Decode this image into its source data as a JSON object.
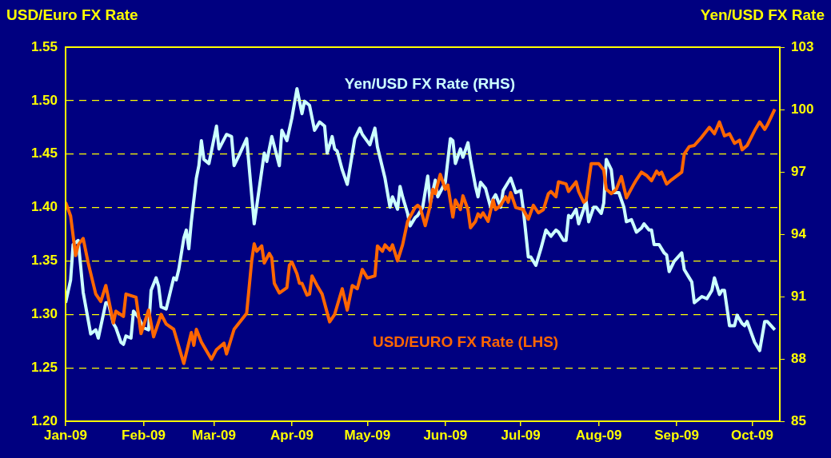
{
  "chart_data": {
    "type": "line",
    "ylabel": "USD/Euro FX Rate",
    "y2label": "Yen/USD FX Rate",
    "xlim": [
      "2009-01-01",
      "2009-10-12"
    ],
    "xticks": [
      {
        "value": "2009-01-01",
        "label": "Jan-09"
      },
      {
        "value": "2009-02-01",
        "label": "Feb-09"
      },
      {
        "value": "2009-03-01",
        "label": "Mar-09"
      },
      {
        "value": "2009-04-01",
        "label": "Apr-09"
      },
      {
        "value": "2009-05-01",
        "label": "May-09"
      },
      {
        "value": "2009-06-01",
        "label": "Jun-09"
      },
      {
        "value": "2009-07-01",
        "label": "Jul-09"
      },
      {
        "value": "2009-08-01",
        "label": "Aug-09"
      },
      {
        "value": "2009-09-01",
        "label": "Sep-09"
      },
      {
        "value": "2009-10-01",
        "label": "Oct-09"
      }
    ],
    "ylim": [
      1.2,
      1.55
    ],
    "yticks": [
      {
        "value": 1.2,
        "label": "1.20"
      },
      1.25,
      {
        "value": 1.3,
        "label": "1.30"
      },
      1.35,
      {
        "value": 1.4,
        "label": "1.40"
      },
      1.45,
      {
        "value": 1.5,
        "label": "1.50"
      },
      1.55
    ],
    "y2lim": [
      85,
      103
    ],
    "y2ticks": [
      85,
      88,
      91,
      94,
      97,
      100,
      103
    ],
    "grid": "y",
    "legend": false,
    "line_style": "solid",
    "series": [
      {
        "name": "USD/EURO FX Rate (LHS)",
        "color": "#ff6600",
        "x": [
          "2009-01-01",
          "2009-01-03",
          "2009-01-05",
          "2009-01-06",
          "2009-01-08",
          "2009-01-10",
          "2009-01-13",
          "2009-01-15",
          "2009-01-17",
          "2009-01-20",
          "2009-01-21",
          "2009-01-24",
          "2009-01-25",
          "2009-01-29",
          "2009-01-31",
          "2009-02-03",
          "2009-02-05",
          "2009-02-08",
          "2009-02-10",
          "2009-02-13",
          "2009-02-17",
          "2009-02-20",
          "2009-02-21",
          "2009-02-22",
          "2009-02-24",
          "2009-02-28",
          "2009-03-02",
          "2009-03-05",
          "2009-03-06",
          "2009-03-09",
          "2009-03-11",
          "2009-03-14",
          "2009-03-16",
          "2009-03-17",
          "2009-03-18",
          "2009-03-20",
          "2009-03-21",
          "2009-03-23",
          "2009-03-24",
          "2009-03-25",
          "2009-03-27",
          "2009-03-30",
          "2009-03-31",
          "2009-04-01",
          "2009-04-03",
          "2009-04-04",
          "2009-04-05",
          "2009-04-07",
          "2009-04-08",
          "2009-04-09",
          "2009-04-11",
          "2009-04-13",
          "2009-04-16",
          "2009-04-18",
          "2009-04-21",
          "2009-04-23",
          "2009-04-25",
          "2009-04-27",
          "2009-04-29",
          "2009-05-01",
          "2009-05-04",
          "2009-05-05",
          "2009-05-07",
          "2009-05-08",
          "2009-05-10",
          "2009-05-11",
          "2009-05-13",
          "2009-05-15",
          "2009-05-17",
          "2009-05-20",
          "2009-05-21",
          "2009-05-22",
          "2009-05-24",
          "2009-05-26",
          "2009-05-27",
          "2009-05-28",
          "2009-05-30",
          "2009-06-01",
          "2009-06-02",
          "2009-06-04",
          "2009-06-05",
          "2009-06-07",
          "2009-06-08",
          "2009-06-10",
          "2009-06-11",
          "2009-06-13",
          "2009-06-14",
          "2009-06-15",
          "2009-06-16",
          "2009-06-18",
          "2009-06-20",
          "2009-06-21",
          "2009-06-23",
          "2009-06-25",
          "2009-06-26",
          "2009-06-27",
          "2009-06-29",
          "2009-07-02",
          "2009-07-04",
          "2009-07-06",
          "2009-07-08",
          "2009-07-10",
          "2009-07-12",
          "2009-07-13",
          "2009-07-15",
          "2009-07-16",
          "2009-07-19",
          "2009-07-20",
          "2009-07-23",
          "2009-07-24",
          "2009-07-26",
          "2009-07-27",
          "2009-07-29",
          "2009-08-01",
          "2009-08-03",
          "2009-08-04",
          "2009-08-06",
          "2009-08-08",
          "2009-08-10",
          "2009-08-12",
          "2009-08-15",
          "2009-08-16",
          "2009-08-18",
          "2009-08-20",
          "2009-08-22",
          "2009-08-24",
          "2009-08-25",
          "2009-08-26",
          "2009-08-28",
          "2009-08-30",
          "2009-09-03",
          "2009-09-04",
          "2009-09-06",
          "2009-09-08",
          "2009-09-11",
          "2009-09-14",
          "2009-09-16",
          "2009-09-18",
          "2009-09-20",
          "2009-09-22",
          "2009-09-24",
          "2009-09-26",
          "2009-09-27",
          "2009-09-29",
          "2009-10-02",
          "2009-10-04",
          "2009-10-06",
          "2009-10-07",
          "2009-10-10"
        ],
        "values": [
          1.405,
          1.392,
          1.355,
          1.365,
          1.371,
          1.348,
          1.319,
          1.312,
          1.327,
          1.292,
          1.303,
          1.298,
          1.319,
          1.316,
          1.282,
          1.304,
          1.279,
          1.3,
          1.291,
          1.286,
          1.254,
          1.283,
          1.271,
          1.286,
          1.274,
          1.258,
          1.267,
          1.273,
          1.263,
          1.286,
          1.292,
          1.301,
          1.35,
          1.366,
          1.359,
          1.364,
          1.348,
          1.357,
          1.353,
          1.329,
          1.32,
          1.325,
          1.346,
          1.349,
          1.338,
          1.329,
          1.329,
          1.318,
          1.319,
          1.336,
          1.327,
          1.319,
          1.293,
          1.3,
          1.324,
          1.304,
          1.327,
          1.324,
          1.342,
          1.334,
          1.336,
          1.364,
          1.359,
          1.365,
          1.36,
          1.365,
          1.35,
          1.365,
          1.387,
          1.4,
          1.402,
          1.4,
          1.383,
          1.402,
          1.417,
          1.413,
          1.431,
          1.417,
          1.421,
          1.391,
          1.407,
          1.398,
          1.411,
          1.398,
          1.381,
          1.387,
          1.394,
          1.391,
          1.395,
          1.387,
          1.407,
          1.398,
          1.402,
          1.41,
          1.405,
          1.414,
          1.4,
          1.398,
          1.389,
          1.402,
          1.395,
          1.398,
          1.413,
          1.415,
          1.41,
          1.424,
          1.422,
          1.415,
          1.424,
          1.415,
          1.405,
          1.407,
          1.441,
          1.441,
          1.435,
          1.417,
          1.413,
          1.417,
          1.429,
          1.409,
          1.422,
          1.426,
          1.433,
          1.43,
          1.425,
          1.434,
          1.431,
          1.433,
          1.422,
          1.426,
          1.433,
          1.45,
          1.457,
          1.458,
          1.466,
          1.475,
          1.469,
          1.48,
          1.467,
          1.469,
          1.46,
          1.463,
          1.454,
          1.458,
          1.472,
          1.48,
          1.473,
          1.477,
          1.492
        ]
      },
      {
        "name": "Yen/USD FX Rate (RHS)",
        "color": "#ccffff",
        "axis": "y2",
        "x": [
          "2009-01-01",
          "2009-01-03",
          "2009-01-04",
          "2009-01-06",
          "2009-01-08",
          "2009-01-11",
          "2009-01-13",
          "2009-01-14",
          "2009-01-17",
          "2009-01-18",
          "2009-01-20",
          "2009-01-21",
          "2009-01-23",
          "2009-01-24",
          "2009-01-25",
          "2009-01-27",
          "2009-01-28",
          "2009-01-30",
          "2009-02-01",
          "2009-02-03",
          "2009-02-04",
          "2009-02-06",
          "2009-02-07",
          "2009-02-08",
          "2009-02-10",
          "2009-02-11",
          "2009-02-13",
          "2009-02-14",
          "2009-02-15",
          "2009-02-17",
          "2009-02-18",
          "2009-02-19",
          "2009-02-20",
          "2009-02-22",
          "2009-02-23",
          "2009-02-24",
          "2009-02-25",
          "2009-02-27",
          "2009-03-02",
          "2009-03-03",
          "2009-03-06",
          "2009-03-08",
          "2009-03-09",
          "2009-03-11",
          "2009-03-14",
          "2009-03-17",
          "2009-03-19",
          "2009-03-21",
          "2009-03-22",
          "2009-03-24",
          "2009-03-27",
          "2009-03-28",
          "2009-03-30",
          "2009-04-01",
          "2009-04-03",
          "2009-04-05",
          "2009-04-06",
          "2009-04-08",
          "2009-04-10",
          "2009-04-12",
          "2009-04-14",
          "2009-04-15",
          "2009-04-17",
          "2009-04-18",
          "2009-04-19",
          "2009-04-21",
          "2009-04-23",
          "2009-04-26",
          "2009-04-28",
          "2009-04-29",
          "2009-05-02",
          "2009-05-04",
          "2009-05-05",
          "2009-05-08",
          "2009-05-10",
          "2009-05-11",
          "2009-05-13",
          "2009-05-14",
          "2009-05-15",
          "2009-05-17",
          "2009-05-18",
          "2009-05-20",
          "2009-05-21",
          "2009-05-23",
          "2009-05-25",
          "2009-05-26",
          "2009-05-28",
          "2009-05-29",
          "2009-06-01",
          "2009-06-03",
          "2009-06-04",
          "2009-06-05",
          "2009-06-07",
          "2009-06-08",
          "2009-06-10",
          "2009-06-11",
          "2009-06-13",
          "2009-06-14",
          "2009-06-15",
          "2009-06-17",
          "2009-06-19",
          "2009-06-20",
          "2009-06-21",
          "2009-06-23",
          "2009-06-24",
          "2009-06-27",
          "2009-06-29",
          "2009-07-01",
          "2009-07-02",
          "2009-07-04",
          "2009-07-05",
          "2009-07-07",
          "2009-07-09",
          "2009-07-11",
          "2009-07-13",
          "2009-07-15",
          "2009-07-16",
          "2009-07-18",
          "2009-07-19",
          "2009-07-20",
          "2009-07-21",
          "2009-07-23",
          "2009-07-24",
          "2009-07-26",
          "2009-07-27",
          "2009-07-28",
          "2009-07-30",
          "2009-07-31",
          "2009-08-02",
          "2009-08-03",
          "2009-08-04",
          "2009-08-06",
          "2009-08-07",
          "2009-08-09",
          "2009-08-11",
          "2009-08-12",
          "2009-08-14",
          "2009-08-16",
          "2009-08-18",
          "2009-08-19",
          "2009-08-21",
          "2009-08-22",
          "2009-08-23",
          "2009-08-25",
          "2009-08-27",
          "2009-08-28",
          "2009-08-29",
          "2009-08-31",
          "2009-09-03",
          "2009-09-04",
          "2009-09-06",
          "2009-09-07",
          "2009-09-08",
          "2009-09-11",
          "2009-09-13",
          "2009-09-15",
          "2009-09-16",
          "2009-09-18",
          "2009-09-19",
          "2009-09-20",
          "2009-09-22",
          "2009-09-24",
          "2009-09-25",
          "2009-09-27",
          "2009-09-28",
          "2009-09-29",
          "2009-10-02",
          "2009-10-04",
          "2009-10-06",
          "2009-10-07",
          "2009-10-10"
        ],
        "values": [
          90.7,
          91.8,
          93.5,
          93.7,
          91.2,
          89.2,
          89.4,
          89.0,
          90.7,
          90.7,
          89.7,
          89.5,
          88.8,
          88.7,
          89.1,
          89.0,
          90.3,
          90.0,
          89.5,
          89.4,
          91.3,
          91.9,
          91.5,
          90.5,
          90.4,
          90.9,
          91.9,
          91.8,
          92.3,
          93.8,
          94.2,
          93.3,
          94.6,
          96.7,
          97.3,
          98.5,
          97.6,
          97.4,
          99.2,
          98.1,
          98.8,
          98.7,
          97.3,
          97.8,
          98.6,
          94.5,
          96.2,
          97.9,
          97.5,
          98.7,
          97.3,
          99.0,
          98.5,
          99.6,
          101.0,
          99.8,
          100.4,
          100.2,
          99.0,
          99.4,
          99.2,
          97.9,
          98.7,
          98.1,
          98.0,
          97.1,
          96.4,
          98.6,
          99.1,
          98.8,
          98.3,
          99.1,
          98.2,
          96.7,
          95.3,
          95.8,
          95.2,
          96.3,
          95.8,
          95.0,
          94.4,
          94.8,
          94.9,
          95.3,
          96.8,
          95.5,
          96.6,
          95.8,
          96.5,
          98.6,
          98.5,
          97.4,
          98.1,
          97.7,
          98.4,
          97.6,
          96.3,
          95.8,
          96.5,
          96.2,
          95.3,
          95.7,
          95.9,
          95.3,
          96.1,
          96.7,
          96.0,
          96.1,
          95.2,
          92.9,
          92.9,
          92.5,
          93.3,
          94.2,
          93.9,
          94.2,
          94.1,
          93.7,
          93.7,
          94.9,
          94.8,
          95.2,
          94.5,
          95.2,
          95.6,
          94.6,
          95.3,
          95.3,
          95.0,
          95.5,
          97.6,
          97.1,
          96.0,
          96.0,
          95.3,
          94.6,
          94.7,
          94.1,
          94.3,
          94.5,
          94.2,
          94.2,
          93.5,
          93.5,
          93.1,
          93.0,
          92.2,
          92.7,
          93.1,
          92.3,
          91.9,
          91.7,
          90.7,
          91.0,
          90.9,
          91.3,
          91.9,
          91.1,
          91.3,
          91.3,
          89.6,
          89.6,
          90.1,
          89.7,
          89.6,
          89.8,
          88.8,
          88.4,
          89.8,
          89.8,
          89.4
        ]
      }
    ]
  }
}
